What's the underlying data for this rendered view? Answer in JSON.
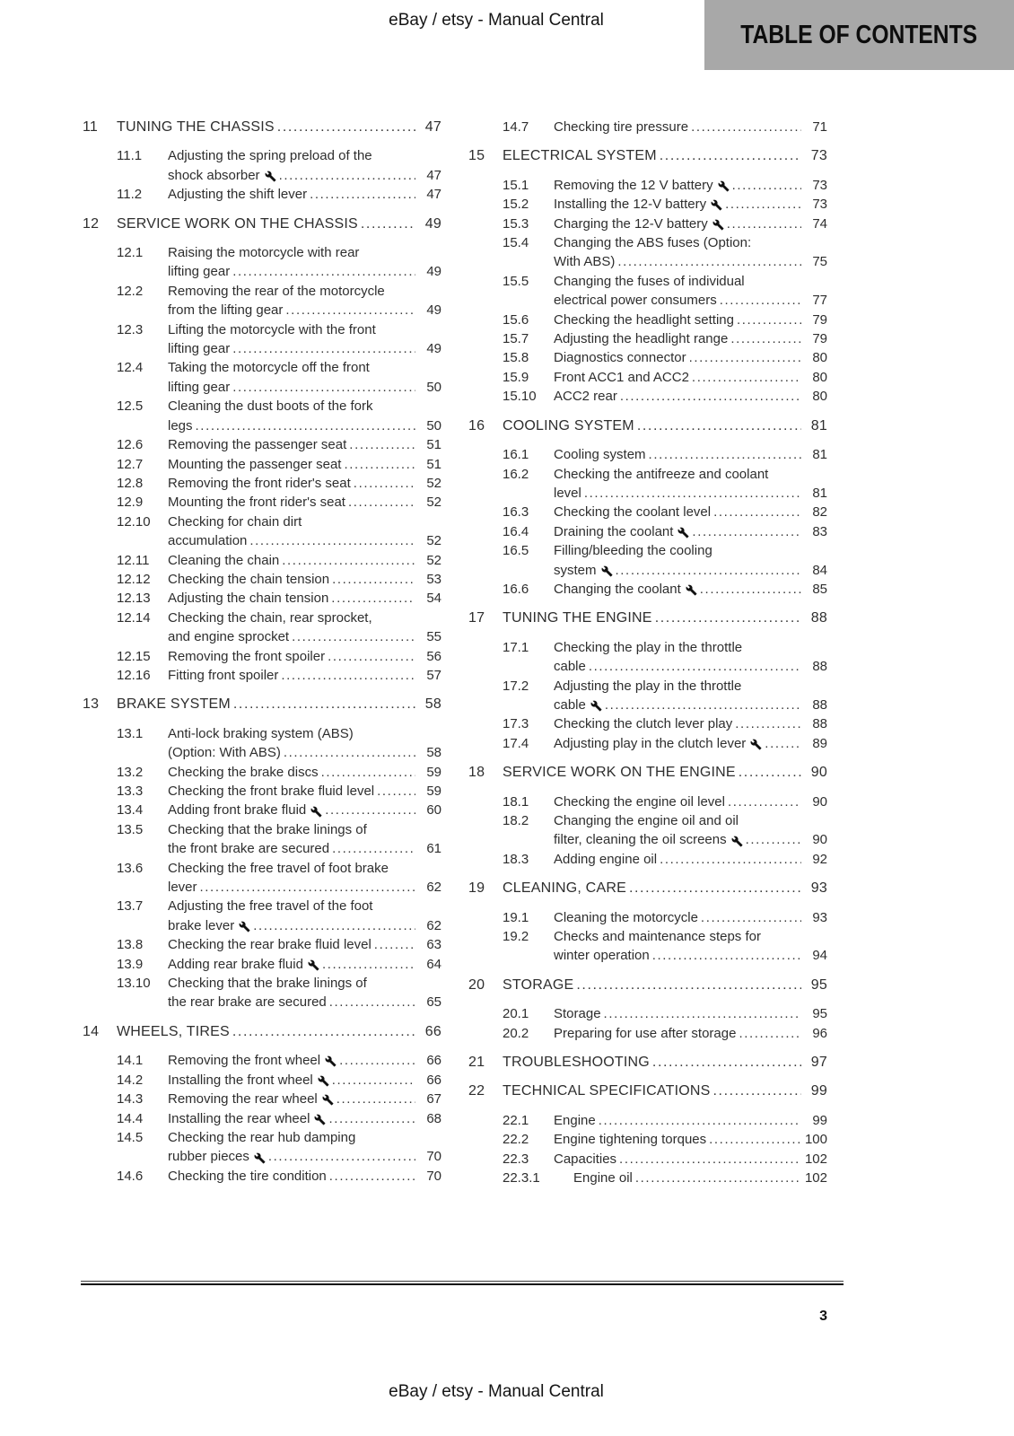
{
  "header": {
    "running_title": "eBay / etsy - Manual Central",
    "banner": "TABLE OF CONTENTS"
  },
  "footer": {
    "page_number": "3",
    "running_title": "eBay / etsy - Manual Central"
  },
  "colors": {
    "banner_bg": "#a8a8a8",
    "text": "#2e2e2e"
  },
  "icons": {
    "wrench": "wrench-icon"
  },
  "toc": {
    "columns": [
      {
        "entries": [
          {
            "num": "11",
            "level": 1,
            "page": "47",
            "lines": [
              "TUNING THE CHASSIS"
            ]
          },
          {
            "num": "11.1",
            "level": 2,
            "page": "47",
            "wrench": true,
            "lines": [
              "Adjusting the spring preload of the",
              "shock absorber"
            ]
          },
          {
            "num": "11.2",
            "level": 2,
            "page": "47",
            "lines": [
              "Adjusting the shift lever"
            ]
          },
          {
            "num": "12",
            "level": 1,
            "page": "49",
            "lines": [
              "SERVICE WORK ON THE CHASSIS"
            ]
          },
          {
            "num": "12.1",
            "level": 2,
            "page": "49",
            "lines": [
              "Raising the motorcycle with rear",
              "lifting gear"
            ]
          },
          {
            "num": "12.2",
            "level": 2,
            "page": "49",
            "lines": [
              "Removing the rear of the motorcycle",
              "from the lifting gear"
            ]
          },
          {
            "num": "12.3",
            "level": 2,
            "page": "49",
            "lines": [
              "Lifting the motorcycle with the front",
              "lifting gear"
            ]
          },
          {
            "num": "12.4",
            "level": 2,
            "page": "50",
            "lines": [
              "Taking the motorcycle off the front",
              "lifting gear"
            ]
          },
          {
            "num": "12.5",
            "level": 2,
            "page": "50",
            "lines": [
              "Cleaning the dust boots of the fork",
              "legs"
            ]
          },
          {
            "num": "12.6",
            "level": 2,
            "page": "51",
            "lines": [
              "Removing the passenger seat"
            ]
          },
          {
            "num": "12.7",
            "level": 2,
            "page": "51",
            "lines": [
              "Mounting the passenger seat"
            ]
          },
          {
            "num": "12.8",
            "level": 2,
            "page": "52",
            "lines": [
              "Removing the front rider's seat"
            ]
          },
          {
            "num": "12.9",
            "level": 2,
            "page": "52",
            "lines": [
              "Mounting the front rider's seat"
            ]
          },
          {
            "num": "12.10",
            "level": 2,
            "page": "52",
            "lines": [
              "Checking for chain dirt",
              "accumulation"
            ]
          },
          {
            "num": "12.11",
            "level": 2,
            "page": "52",
            "lines": [
              "Cleaning the chain"
            ]
          },
          {
            "num": "12.12",
            "level": 2,
            "page": "53",
            "lines": [
              "Checking the chain tension"
            ]
          },
          {
            "num": "12.13",
            "level": 2,
            "page": "54",
            "lines": [
              "Adjusting the chain tension"
            ]
          },
          {
            "num": "12.14",
            "level": 2,
            "page": "55",
            "lines": [
              "Checking the chain, rear sprocket,",
              "and engine sprocket"
            ]
          },
          {
            "num": "12.15",
            "level": 2,
            "page": "56",
            "lines": [
              "Removing the front spoiler"
            ]
          },
          {
            "num": "12.16",
            "level": 2,
            "page": "57",
            "lines": [
              "Fitting front spoiler"
            ]
          },
          {
            "num": "13",
            "level": 1,
            "page": "58",
            "lines": [
              "BRAKE SYSTEM"
            ]
          },
          {
            "num": "13.1",
            "level": 2,
            "page": "58",
            "lines": [
              "Anti-lock braking system (ABS)",
              "(Option: With ABS)"
            ]
          },
          {
            "num": "13.2",
            "level": 2,
            "page": "59",
            "lines": [
              "Checking the brake discs"
            ]
          },
          {
            "num": "13.3",
            "level": 2,
            "page": "59",
            "lines": [
              "Checking the front brake fluid level"
            ]
          },
          {
            "num": "13.4",
            "level": 2,
            "page": "60",
            "wrench": true,
            "lines": [
              "Adding front brake fluid"
            ]
          },
          {
            "num": "13.5",
            "level": 2,
            "page": "61",
            "lines": [
              "Checking that the brake linings of",
              "the front brake are secured"
            ]
          },
          {
            "num": "13.6",
            "level": 2,
            "page": "62",
            "lines": [
              "Checking the free travel of foot brake",
              "lever"
            ]
          },
          {
            "num": "13.7",
            "level": 2,
            "page": "62",
            "wrench": true,
            "lines": [
              "Adjusting the free travel of the foot",
              "brake lever"
            ]
          },
          {
            "num": "13.8",
            "level": 2,
            "page": "63",
            "lines": [
              "Checking the rear brake fluid level"
            ]
          },
          {
            "num": "13.9",
            "level": 2,
            "page": "64",
            "wrench": true,
            "lines": [
              "Adding rear brake fluid"
            ]
          },
          {
            "num": "13.10",
            "level": 2,
            "page": "65",
            "lines": [
              "Checking that the brake linings of",
              "the rear brake are secured"
            ]
          },
          {
            "num": "14",
            "level": 1,
            "page": "66",
            "lines": [
              "WHEELS, TIRES"
            ]
          },
          {
            "num": "14.1",
            "level": 2,
            "page": "66",
            "wrench": true,
            "lines": [
              "Removing the front wheel"
            ]
          },
          {
            "num": "14.2",
            "level": 2,
            "page": "66",
            "wrench": true,
            "lines": [
              "Installing the front wheel"
            ]
          },
          {
            "num": "14.3",
            "level": 2,
            "page": "67",
            "wrench": true,
            "lines": [
              "Removing the rear wheel"
            ]
          },
          {
            "num": "14.4",
            "level": 2,
            "page": "68",
            "wrench": true,
            "lines": [
              "Installing the rear wheel"
            ]
          },
          {
            "num": "14.5",
            "level": 2,
            "page": "70",
            "wrench": true,
            "lines": [
              "Checking the rear hub damping",
              "rubber pieces"
            ]
          },
          {
            "num": "14.6",
            "level": 2,
            "page": "70",
            "lines": [
              "Checking the tire condition"
            ]
          }
        ]
      },
      {
        "entries": [
          {
            "num": "14.7",
            "level": 2,
            "page": "71",
            "lines": [
              "Checking tire pressure"
            ]
          },
          {
            "num": "15",
            "level": 1,
            "page": "73",
            "lines": [
              "ELECTRICAL SYSTEM"
            ]
          },
          {
            "num": "15.1",
            "level": 2,
            "page": "73",
            "wrench": true,
            "lines": [
              "Removing the 12 V battery"
            ]
          },
          {
            "num": "15.2",
            "level": 2,
            "page": "73",
            "wrench": true,
            "lines": [
              "Installing the 12-V battery"
            ]
          },
          {
            "num": "15.3",
            "level": 2,
            "page": "74",
            "wrench": true,
            "lines": [
              "Charging the 12-V battery"
            ]
          },
          {
            "num": "15.4",
            "level": 2,
            "page": "75",
            "lines": [
              "Changing the ABS fuses (Option:",
              "With ABS)"
            ]
          },
          {
            "num": "15.5",
            "level": 2,
            "page": "77",
            "lines": [
              "Changing the fuses of individual",
              "electrical power consumers"
            ]
          },
          {
            "num": "15.6",
            "level": 2,
            "page": "79",
            "lines": [
              "Checking the headlight setting"
            ]
          },
          {
            "num": "15.7",
            "level": 2,
            "page": "79",
            "lines": [
              "Adjusting the headlight range"
            ]
          },
          {
            "num": "15.8",
            "level": 2,
            "page": "80",
            "lines": [
              "Diagnostics connector"
            ]
          },
          {
            "num": "15.9",
            "level": 2,
            "page": "80",
            "lines": [
              "Front ACC1 and ACC2"
            ]
          },
          {
            "num": "15.10",
            "level": 2,
            "page": "80",
            "lines": [
              "ACC2 rear"
            ]
          },
          {
            "num": "16",
            "level": 1,
            "page": "81",
            "lines": [
              "COOLING SYSTEM"
            ]
          },
          {
            "num": "16.1",
            "level": 2,
            "page": "81",
            "lines": [
              "Cooling system"
            ]
          },
          {
            "num": "16.2",
            "level": 2,
            "page": "81",
            "lines": [
              "Checking the antifreeze and coolant",
              "level"
            ]
          },
          {
            "num": "16.3",
            "level": 2,
            "page": "82",
            "lines": [
              "Checking the coolant level"
            ]
          },
          {
            "num": "16.4",
            "level": 2,
            "page": "83",
            "wrench": true,
            "lines": [
              "Draining the coolant"
            ]
          },
          {
            "num": "16.5",
            "level": 2,
            "page": "84",
            "wrench": true,
            "lines": [
              "Filling/bleeding the cooling",
              "system"
            ]
          },
          {
            "num": "16.6",
            "level": 2,
            "page": "85",
            "wrench": true,
            "lines": [
              "Changing the coolant"
            ]
          },
          {
            "num": "17",
            "level": 1,
            "page": "88",
            "lines": [
              "TUNING THE ENGINE"
            ]
          },
          {
            "num": "17.1",
            "level": 2,
            "page": "88",
            "lines": [
              "Checking the play in the throttle",
              "cable"
            ]
          },
          {
            "num": "17.2",
            "level": 2,
            "page": "88",
            "wrench": true,
            "lines": [
              "Adjusting the play in the throttle",
              "cable"
            ]
          },
          {
            "num": "17.3",
            "level": 2,
            "page": "88",
            "lines": [
              "Checking the clutch lever play"
            ]
          },
          {
            "num": "17.4",
            "level": 2,
            "page": "89",
            "wrench": true,
            "lines": [
              "Adjusting play in the clutch lever"
            ]
          },
          {
            "num": "18",
            "level": 1,
            "page": "90",
            "lines": [
              "SERVICE WORK ON THE ENGINE"
            ]
          },
          {
            "num": "18.1",
            "level": 2,
            "page": "90",
            "lines": [
              "Checking the engine oil level"
            ]
          },
          {
            "num": "18.2",
            "level": 2,
            "page": "90",
            "wrench": true,
            "lines": [
              "Changing the engine oil and oil",
              "filter, cleaning the oil screens"
            ]
          },
          {
            "num": "18.3",
            "level": 2,
            "page": "92",
            "lines": [
              "Adding engine oil"
            ]
          },
          {
            "num": "19",
            "level": 1,
            "page": "93",
            "lines": [
              "CLEANING, CARE"
            ]
          },
          {
            "num": "19.1",
            "level": 2,
            "page": "93",
            "lines": [
              "Cleaning the motorcycle"
            ]
          },
          {
            "num": "19.2",
            "level": 2,
            "page": "94",
            "lines": [
              "Checks and maintenance steps for",
              "winter operation"
            ]
          },
          {
            "num": "20",
            "level": 1,
            "page": "95",
            "lines": [
              "STORAGE"
            ]
          },
          {
            "num": "20.1",
            "level": 2,
            "page": "95",
            "lines": [
              "Storage"
            ]
          },
          {
            "num": "20.2",
            "level": 2,
            "page": "96",
            "lines": [
              "Preparing for use after storage"
            ]
          },
          {
            "num": "21",
            "level": 1,
            "page": "97",
            "lines": [
              "TROUBLESHOOTING"
            ]
          },
          {
            "num": "22",
            "level": 1,
            "page": "99",
            "lines": [
              "TECHNICAL SPECIFICATIONS"
            ]
          },
          {
            "num": "22.1",
            "level": 2,
            "page": "99",
            "lines": [
              "Engine"
            ]
          },
          {
            "num": "22.2",
            "level": 2,
            "page": "100",
            "lines": [
              "Engine tightening torques"
            ]
          },
          {
            "num": "22.3",
            "level": 2,
            "page": "102",
            "lines": [
              "Capacities"
            ]
          },
          {
            "num": "22.3.1",
            "level": 3,
            "page": "102",
            "lines": [
              "Engine oil"
            ]
          }
        ]
      }
    ]
  }
}
